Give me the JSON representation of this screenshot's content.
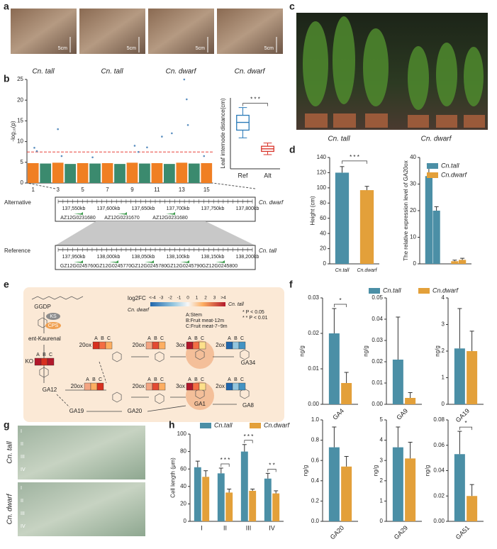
{
  "panel_labels": [
    "a",
    "b",
    "c",
    "d",
    "e",
    "f",
    "g",
    "h"
  ],
  "photo_a": {
    "scale_labels": [
      "5cm",
      "5cm",
      "5cm",
      "5cm"
    ],
    "captions": [
      "Cn. tall",
      "Cn. tall",
      "Cn. dwarf",
      "Cn. dwarf"
    ]
  },
  "photo_c": {
    "captions": [
      "Cn. tall",
      "Cn. dwarf"
    ]
  },
  "photo_g": {
    "captions": [
      "Cn. tall",
      "Cn. dwarf"
    ],
    "row_labels": [
      "I",
      "II",
      "III",
      "IV"
    ]
  },
  "genome": {
    "alternative": {
      "label": "Alternative",
      "line": "Cn. dwarf",
      "positions": [
        "137,550kb",
        "137,600kb",
        "137,650kb",
        "137,700kb",
        "137,750kb",
        "137,800kb"
      ],
      "genes": [
        "AZ12G0231680",
        "AZ12G0231670",
        "AZ12G0231680"
      ]
    },
    "reference": {
      "label": "Reference",
      "line": "Cn. tall",
      "positions": [
        "137,950kb",
        "138,000kb",
        "138,050kb",
        "138,100kb",
        "138,150kb",
        "138,200kb"
      ],
      "genes": [
        "GZ12G0245760",
        "GZ12G0245770",
        "GZ12G0245780",
        "GZ12G0245790",
        "GZ12G0245800"
      ]
    }
  },
  "pathway": {
    "compounds": [
      "GGDP",
      "ent-Kaurenal",
      "GA12",
      "GA19",
      "GA20",
      "GA1",
      "GA8",
      "GA34"
    ],
    "synthases": [
      "KS",
      "CPS"
    ],
    "heat_header": [
      "A",
      "B",
      "C"
    ],
    "enzymes": [
      {
        "name": "20ox",
        "colors": [
          "#d7301f",
          "#f46d43",
          "#fdae61"
        ]
      },
      {
        "name": "20ox",
        "colors": [
          "#f4a582",
          "#e34a33",
          "#fdae61"
        ]
      },
      {
        "name": "3ox",
        "colors": [
          "#b2182b",
          "#f46d43",
          "#fee08b"
        ]
      },
      {
        "name": "2ox",
        "colors": [
          "#2166ac",
          "#92c5de",
          "#4393c3"
        ]
      },
      {
        "name": "KO",
        "colors": [
          "#b2182b",
          "#d7301f",
          "#b2182b"
        ]
      },
      {
        "name": "20ox",
        "colors": [
          "#f4a582",
          "#fdae61",
          "#d7301f"
        ]
      },
      {
        "name": "20ox",
        "colors": [
          "#f4a582",
          "#e34a33",
          "#fdae61"
        ]
      },
      {
        "name": "3ox",
        "colors": [
          "#b2182b",
          "#f46d43",
          "#fee08b"
        ]
      },
      {
        "name": "2ox",
        "colors": [
          "#2166ac",
          "#92c5de",
          "#4393c3"
        ]
      }
    ],
    "legend_title": "log2FC",
    "scale": [
      "<-4",
      "-3",
      "-2",
      "-1",
      "0",
      "1",
      "2",
      "3",
      ">4"
    ],
    "scale_ends": [
      "Cn. dwarf",
      "Cn. tall"
    ],
    "tissues": [
      "A:Stem",
      "B:Fruit meat-12m",
      "C:Fruit meat-7~9m"
    ],
    "significance": [
      "* P < 0.05",
      "* * P < 0.01"
    ]
  },
  "chart_data": [
    {
      "type": "manhattan",
      "ylabel": "-log₁₀(p)",
      "categories": [
        "1",
        null,
        "3",
        null,
        "5",
        null,
        "7",
        null,
        "9",
        null,
        "11",
        null,
        "13",
        null,
        "15"
      ],
      "values": [
        4.8,
        4.7,
        4.9,
        4.6,
        4.8,
        4.7,
        4.8,
        4.6,
        4.9,
        4.7,
        4.8,
        4.6,
        4.9,
        4.7,
        4.8
      ],
      "colors": [
        "#f07f23",
        "#3b8a6e"
      ],
      "xlim": [
        0.5,
        15.5
      ],
      "ylim": [
        0,
        25
      ],
      "yticks": [
        0,
        5,
        10,
        15,
        20,
        25
      ],
      "threshold": 7.5,
      "threshold_color": "#e8423c",
      "points_x": [
        1.1,
        1.3,
        3.0,
        3.3,
        5.8,
        9.2,
        9.5,
        10.2,
        11.4,
        12.2,
        13.2,
        13.4,
        13.5,
        14.8
      ],
      "points_y": [
        8.5,
        7.7,
        13,
        6.5,
        6.2,
        9,
        7.5,
        8.6,
        11.2,
        12,
        25,
        20.2,
        14,
        6.5
      ],
      "point_color": "#5b8fc0"
    },
    {
      "type": "box",
      "ylabel": "Leaf internode distance(cm)",
      "categories": [
        "Ref",
        "Alt"
      ],
      "whislo": [
        48,
        22
      ],
      "q1": [
        60,
        27
      ],
      "median": [
        72,
        31
      ],
      "q3": [
        83,
        35
      ],
      "whishi": [
        95,
        40
      ],
      "colors": [
        "#2a7ab8",
        "#d9342b"
      ],
      "ylim": [
        0,
        110
      ],
      "annotation": "* * *"
    },
    {
      "type": "bar",
      "ylabel": "Height (cm)",
      "categories": [
        "Cn.tall",
        "Cn.dwarf"
      ],
      "values": [
        120,
        97
      ],
      "errors": [
        8,
        5
      ],
      "colors": [
        "#4b8fa6",
        "#e3a03a"
      ],
      "ylim": [
        0,
        140
      ],
      "yticks": [
        0,
        20,
        40,
        60,
        80,
        100,
        120,
        140
      ],
      "annotation": "* * *"
    },
    {
      "type": "paired_bar",
      "ylabel": "The relative expression level of GA20ox",
      "series": [
        {
          "name": "Cn.tall",
          "color": "#4b8fa6",
          "values": [
            33,
            20
          ],
          "errors": [
            4.5,
            1.5
          ]
        },
        {
          "name": "Cn.dwarf",
          "color": "#e3a03a",
          "values": [
            1,
            1.5
          ],
          "errors": [
            0.4,
            0.6
          ]
        }
      ],
      "ylim": [
        0,
        40
      ],
      "yticks": [
        0,
        10,
        20,
        30,
        40
      ],
      "legend": true
    },
    {
      "type": "grouped_bar",
      "ylabel": "ng/g",
      "categories": [
        "GA4"
      ],
      "rotate_labels": true,
      "legend": true,
      "series": [
        {
          "name": "Cn.tall",
          "color": "#4b8fa6",
          "values": [
            0.02
          ],
          "errors": [
            0.007
          ]
        },
        {
          "name": "Cn.dwarf",
          "color": "#e3a03a",
          "values": [
            0.006
          ],
          "errors": [
            0.003
          ]
        }
      ],
      "ylim": [
        0,
        0.03
      ],
      "yticks": [
        {
          "value": 0,
          "label": "0.00"
        },
        0.01,
        0.02,
        0.03
      ],
      "annotations": [
        "*"
      ]
    },
    {
      "type": "grouped_bar",
      "ylabel": "ng/g",
      "categories": [
        "GA9"
      ],
      "rotate_labels": true,
      "series": [
        {
          "name": "Cn.tall",
          "color": "#4b8fa6",
          "values": [
            0.021
          ],
          "errors": [
            0.02
          ]
        },
        {
          "name": "Cn.dwarf",
          "color": "#e3a03a",
          "values": [
            0.003
          ],
          "errors": [
            0.0025
          ]
        }
      ],
      "ylim": [
        0,
        0.05
      ],
      "yticks": [
        {
          "value": 0,
          "label": "0.00"
        },
        0.01,
        0.02,
        0.03,
        0.04,
        0.05
      ]
    },
    {
      "type": "grouped_bar",
      "ylabel": "ng/g",
      "categories": [
        "GA19"
      ],
      "rotate_labels": true,
      "series": [
        {
          "name": "Cn.tall",
          "color": "#4b8fa6",
          "values": [
            2.1
          ],
          "errors": [
            1.5
          ]
        },
        {
          "name": "Cn.dwarf",
          "color": "#e3a03a",
          "values": [
            2.0
          ],
          "errors": [
            0.75
          ]
        }
      ],
      "ylim": [
        0,
        4
      ],
      "yticks": [
        0,
        1,
        2,
        3,
        4
      ]
    },
    {
      "type": "grouped_bar",
      "ylabel": "ng/g",
      "categories": [
        "GA20"
      ],
      "rotate_labels": true,
      "series": [
        {
          "name": "Cn.tall",
          "color": "#4b8fa6",
          "values": [
            0.73
          ],
          "errors": [
            0.2
          ]
        },
        {
          "name": "Cn.dwarf",
          "color": "#e3a03a",
          "values": [
            0.54
          ],
          "errors": [
            0.1
          ]
        }
      ],
      "ylim": [
        0,
        1
      ],
      "yticks": [
        {
          "value": 0,
          "label": "0.0"
        },
        0.2,
        0.4,
        0.6,
        0.8,
        {
          "value": 1,
          "label": "1.0"
        }
      ]
    },
    {
      "type": "grouped_bar",
      "ylabel": "ng/g",
      "categories": [
        "GA29"
      ],
      "rotate_labels": true,
      "series": [
        {
          "name": "Cn.tall",
          "color": "#4b8fa6",
          "values": [
            3.65
          ],
          "errors": [
            1.0
          ]
        },
        {
          "name": "Cn.dwarf",
          "color": "#e3a03a",
          "values": [
            3.1
          ],
          "errors": [
            0.8
          ]
        }
      ],
      "ylim": [
        0,
        5
      ],
      "yticks": [
        0,
        1,
        2,
        3,
        4,
        5
      ]
    },
    {
      "type": "grouped_bar",
      "ylabel": "ng/g",
      "categories": [
        "GA51"
      ],
      "rotate_labels": true,
      "series": [
        {
          "name": "Cn.tall",
          "color": "#4b8fa6",
          "values": [
            0.053
          ],
          "errors": [
            0.018
          ]
        },
        {
          "name": "Cn.dwarf",
          "color": "#e3a03a",
          "values": [
            0.02
          ],
          "errors": [
            0.009
          ]
        }
      ],
      "ylim": [
        0,
        0.08
      ],
      "yticks": [
        {
          "value": 0,
          "label": "0.00"
        },
        0.02,
        0.04,
        0.06,
        0.08
      ],
      "annotations": [
        "*"
      ]
    },
    {
      "type": "grouped_bar",
      "ylabel": "Cell length (μm)",
      "categories": [
        "I",
        "II",
        "III",
        "IV"
      ],
      "legend": true,
      "series": [
        {
          "name": "Cn.tall",
          "color": "#4b8fa6",
          "values": [
            62,
            55,
            80,
            49
          ],
          "errors": [
            7,
            6,
            8,
            6
          ]
        },
        {
          "name": "Cn.dwarf",
          "color": "#e3a03a",
          "values": [
            51,
            33,
            35,
            32
          ],
          "errors": [
            7,
            4,
            2,
            3
          ]
        }
      ],
      "ylim": [
        0,
        100
      ],
      "yticks": [
        0,
        20,
        40,
        60,
        80,
        100
      ],
      "annotations": [
        null,
        "* * *",
        "* * *",
        "* *"
      ]
    }
  ]
}
